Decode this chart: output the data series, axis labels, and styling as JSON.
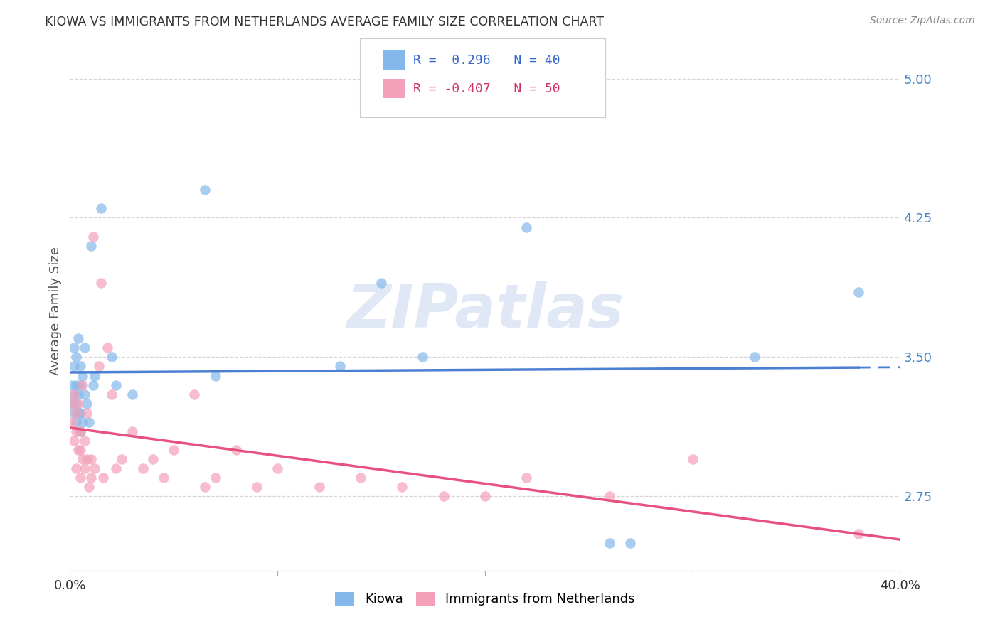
{
  "title": "KIOWA VS IMMIGRANTS FROM NETHERLANDS AVERAGE FAMILY SIZE CORRELATION CHART",
  "source": "Source: ZipAtlas.com",
  "ylabel": "Average Family Size",
  "xlim": [
    0.0,
    0.4
  ],
  "ylim": [
    2.35,
    5.15
  ],
  "yticks": [
    2.75,
    3.5,
    4.25,
    5.0
  ],
  "xtick_positions": [
    0.0,
    0.1,
    0.2,
    0.3,
    0.4
  ],
  "background_color": "#ffffff",
  "watermark_text": "ZIPatlas",
  "legend_r1": "R =  0.296",
  "legend_n1": "N = 40",
  "legend_r2": "R = -0.407",
  "legend_n2": "N = 50",
  "legend_label1": "Kiowa",
  "legend_label2": "Immigrants from Netherlands",
  "color_blue": "#85b8ea",
  "color_pink": "#f4a0b8",
  "line_blue": "#4a7fd4",
  "line_pink": "#e85080",
  "kiowa_x": [
    0.001,
    0.001,
    0.002,
    0.002,
    0.002,
    0.002,
    0.003,
    0.003,
    0.003,
    0.003,
    0.004,
    0.004,
    0.004,
    0.005,
    0.005,
    0.005,
    0.005,
    0.006,
    0.006,
    0.007,
    0.007,
    0.008,
    0.009,
    0.01,
    0.011,
    0.012,
    0.015,
    0.02,
    0.022,
    0.03,
    0.065,
    0.07,
    0.13,
    0.15,
    0.17,
    0.22,
    0.26,
    0.27,
    0.33,
    0.38
  ],
  "kiowa_y": [
    3.25,
    3.35,
    3.2,
    3.3,
    3.45,
    3.55,
    3.15,
    3.25,
    3.35,
    3.5,
    3.2,
    3.3,
    3.6,
    3.1,
    3.2,
    3.35,
    3.45,
    3.15,
    3.4,
    3.3,
    3.55,
    3.25,
    3.15,
    4.1,
    3.35,
    3.4,
    4.3,
    3.5,
    3.35,
    3.3,
    4.4,
    3.4,
    3.45,
    3.9,
    3.5,
    4.2,
    2.5,
    2.5,
    3.5,
    3.85
  ],
  "netherlands_x": [
    0.001,
    0.001,
    0.002,
    0.002,
    0.003,
    0.003,
    0.003,
    0.004,
    0.004,
    0.005,
    0.005,
    0.005,
    0.006,
    0.006,
    0.007,
    0.007,
    0.008,
    0.008,
    0.009,
    0.01,
    0.01,
    0.011,
    0.012,
    0.014,
    0.015,
    0.016,
    0.018,
    0.02,
    0.022,
    0.025,
    0.03,
    0.035,
    0.04,
    0.045,
    0.05,
    0.06,
    0.065,
    0.07,
    0.08,
    0.09,
    0.1,
    0.12,
    0.14,
    0.16,
    0.18,
    0.2,
    0.22,
    0.26,
    0.3,
    0.38
  ],
  "netherlands_y": [
    3.25,
    3.15,
    3.3,
    3.05,
    3.2,
    3.1,
    2.9,
    3.25,
    3.0,
    3.1,
    3.0,
    2.85,
    3.35,
    2.95,
    3.05,
    2.9,
    3.2,
    2.95,
    2.8,
    2.85,
    2.95,
    4.15,
    2.9,
    3.45,
    3.9,
    2.85,
    3.55,
    3.3,
    2.9,
    2.95,
    3.1,
    2.9,
    2.95,
    2.85,
    3.0,
    3.3,
    2.8,
    2.85,
    3.0,
    2.8,
    2.9,
    2.8,
    2.85,
    2.8,
    2.75,
    2.75,
    2.85,
    2.75,
    2.95,
    2.55
  ]
}
